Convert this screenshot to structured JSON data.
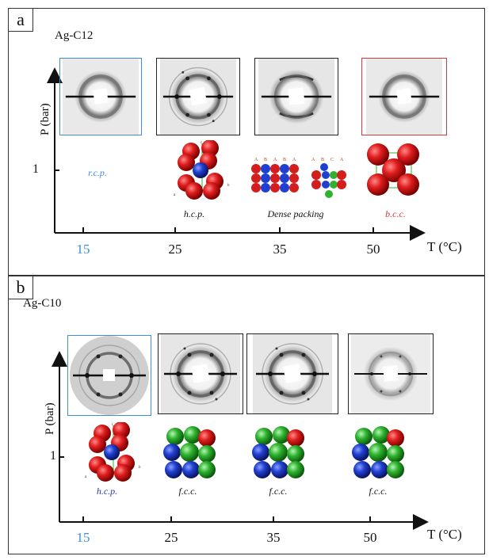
{
  "panels": [
    {
      "id": "a",
      "label": "a",
      "title": "Ag-C12",
      "ylabel": "P (bar)",
      "ytick": "1",
      "xlabel": "T (°C)",
      "ticks": [
        "15",
        "25",
        "35",
        "50"
      ],
      "phases": [
        "r.c.p.",
        "h.c.p.",
        "Dense packing",
        "b.c.c."
      ],
      "tile_borders": [
        "#3d8fd6",
        "#222222",
        "#222222",
        "#d23b3b"
      ]
    },
    {
      "id": "b",
      "label": "b",
      "title": "Ag-C10",
      "ylabel": "P (bar)",
      "ytick": "1",
      "xlabel": "T (°C)",
      "ticks": [
        "15",
        "25",
        "35",
        "50"
      ],
      "phases": [
        "h.c.p.",
        "f.c.c.",
        "f.c.c.",
        "f.c.c."
      ],
      "tile_borders": [
        "#3d8fd6",
        "#222222",
        "#222222",
        "#222222"
      ]
    }
  ],
  "stacking_labels": {
    "abab": [
      "A",
      "B",
      "A",
      "B",
      "A"
    ],
    "abca": [
      "A",
      "B",
      "C",
      "A"
    ]
  },
  "axis_letters": {
    "hcp": [
      "c",
      "a",
      "b"
    ]
  },
  "colors": {
    "accent_blue": "#3d8fd6",
    "accent_red": "#d23b3b",
    "sphere_red": "#d41e1e",
    "sphere_blue": "#1f3fd0",
    "sphere_green": "#2fb32f"
  }
}
